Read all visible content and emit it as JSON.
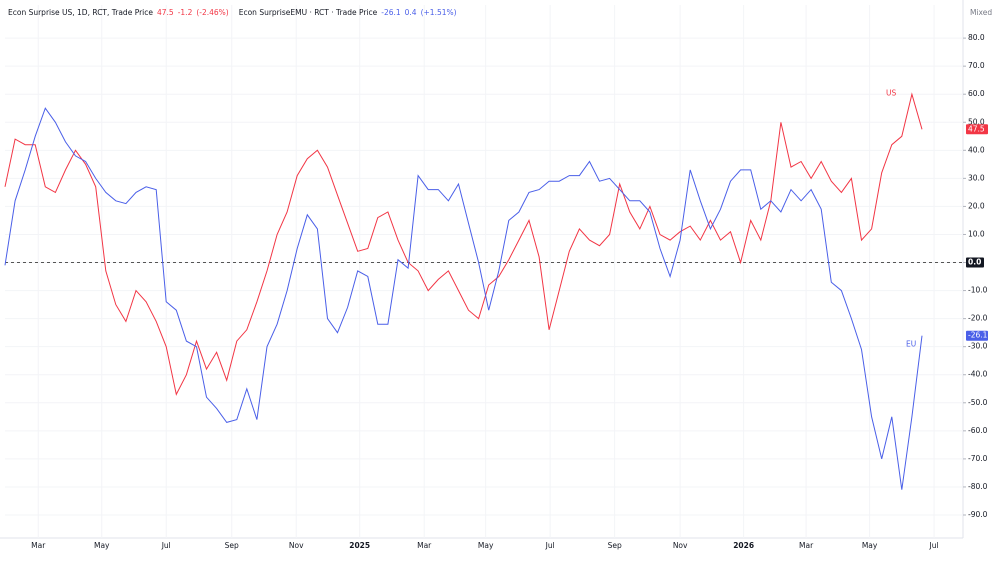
{
  "chart_data": {
    "type": "line",
    "scale_mode": "Mixed",
    "grid": true,
    "zero_line": true,
    "xlim": [
      0,
      95.07
    ],
    "xticks": [
      {
        "value": 3.3,
        "label": "Mar"
      },
      {
        "value": 9.6,
        "label": "May"
      },
      {
        "value": 16.0,
        "label": "Jul"
      },
      {
        "value": 22.5,
        "label": "Sep"
      },
      {
        "value": 28.9,
        "label": "Nov"
      },
      {
        "value": 35.2,
        "label": "2025"
      },
      {
        "value": 41.6,
        "label": "Mar"
      },
      {
        "value": 47.7,
        "label": "May"
      },
      {
        "value": 54.1,
        "label": "Jul"
      },
      {
        "value": 60.5,
        "label": "Sep"
      },
      {
        "value": 67.0,
        "label": "Nov"
      },
      {
        "value": 73.3,
        "label": "2026"
      },
      {
        "value": 79.5,
        "label": "Mar"
      },
      {
        "value": 85.8,
        "label": "May"
      },
      {
        "value": 92.2,
        "label": "Jul"
      }
    ],
    "ylim": [
      -98.2,
      91.8
    ],
    "yticks": [
      {
        "value": 80,
        "label": "80.0"
      },
      {
        "value": 70,
        "label": "70.0"
      },
      {
        "value": 60,
        "label": "60.0"
      },
      {
        "value": 50,
        "label": "50.0"
      },
      {
        "value": 40,
        "label": "40.0"
      },
      {
        "value": 30,
        "label": "30.0"
      },
      {
        "value": 20,
        "label": "20.0"
      },
      {
        "value": 10,
        "label": "10.0"
      },
      {
        "value": 0,
        "label": "0.0"
      },
      {
        "value": -10,
        "label": "-10.0"
      },
      {
        "value": -20,
        "label": "-20.0"
      },
      {
        "value": -30,
        "label": "-30.0"
      },
      {
        "value": -40,
        "label": "-40.0"
      },
      {
        "value": -50,
        "label": "-50.0"
      },
      {
        "value": -60,
        "label": "-60.0"
      },
      {
        "value": -70,
        "label": "-70.0"
      },
      {
        "value": -80,
        "label": "-80.0"
      },
      {
        "value": -90,
        "label": "-90.0"
      }
    ],
    "series": [
      {
        "name": "Econ Surprise US, 1D, RCT, Trade Price",
        "label": "US",
        "color": "#f23645",
        "change": -1.2,
        "change_pct": "(-2.46%)",
        "values": [
          27,
          44,
          42,
          42,
          27,
          25,
          33,
          40,
          35,
          27,
          -3,
          -15,
          -21,
          -10,
          -14,
          -21,
          -30,
          -47,
          -40,
          -28,
          -38,
          -32,
          -42,
          -28,
          -24,
          -14,
          -3,
          10,
          18,
          31,
          37,
          40,
          34,
          24,
          14,
          4,
          5,
          16,
          18,
          8,
          0,
          -3,
          -10,
          -6,
          -3,
          -10,
          -17,
          -20,
          -8,
          -5,
          1,
          8,
          15,
          2,
          -24,
          -10,
          4,
          12,
          8,
          6,
          10,
          28,
          18,
          12,
          20,
          10,
          8,
          11,
          13,
          8,
          15,
          8,
          11,
          0,
          15,
          8,
          22,
          50,
          34,
          36,
          30,
          36,
          29,
          25,
          30,
          8,
          12,
          32,
          42,
          45,
          60,
          47.5
        ]
      },
      {
        "name": "Econ SurpriseEMU · RCT · Trade Price",
        "label": "EU",
        "color": "#4a5fe8",
        "change": 0.4,
        "change_pct": "(+1.51%)",
        "values": [
          -1,
          22,
          33,
          45,
          55,
          50,
          43,
          38,
          36,
          30,
          25,
          22,
          21,
          25,
          27,
          26,
          -14,
          -17,
          -28,
          -30,
          -48,
          -52,
          -57,
          -56,
          -45,
          -56,
          -30,
          -22,
          -10,
          5,
          17,
          12,
          -20,
          -25,
          -16,
          -3,
          -5,
          -22,
          -22,
          1,
          -2,
          31,
          26,
          26,
          22,
          28,
          14,
          0,
          -17,
          -3,
          15,
          18,
          25,
          26,
          29,
          29,
          31,
          31,
          36,
          29,
          30,
          26,
          22,
          22,
          18,
          5,
          -5,
          8,
          33,
          22,
          12,
          19,
          29,
          33,
          33,
          19,
          22,
          18,
          26,
          22,
          26,
          19,
          -7,
          -10,
          -20,
          -31,
          -55,
          -70,
          -55,
          -81,
          -55,
          -26.1
        ]
      }
    ]
  }
}
